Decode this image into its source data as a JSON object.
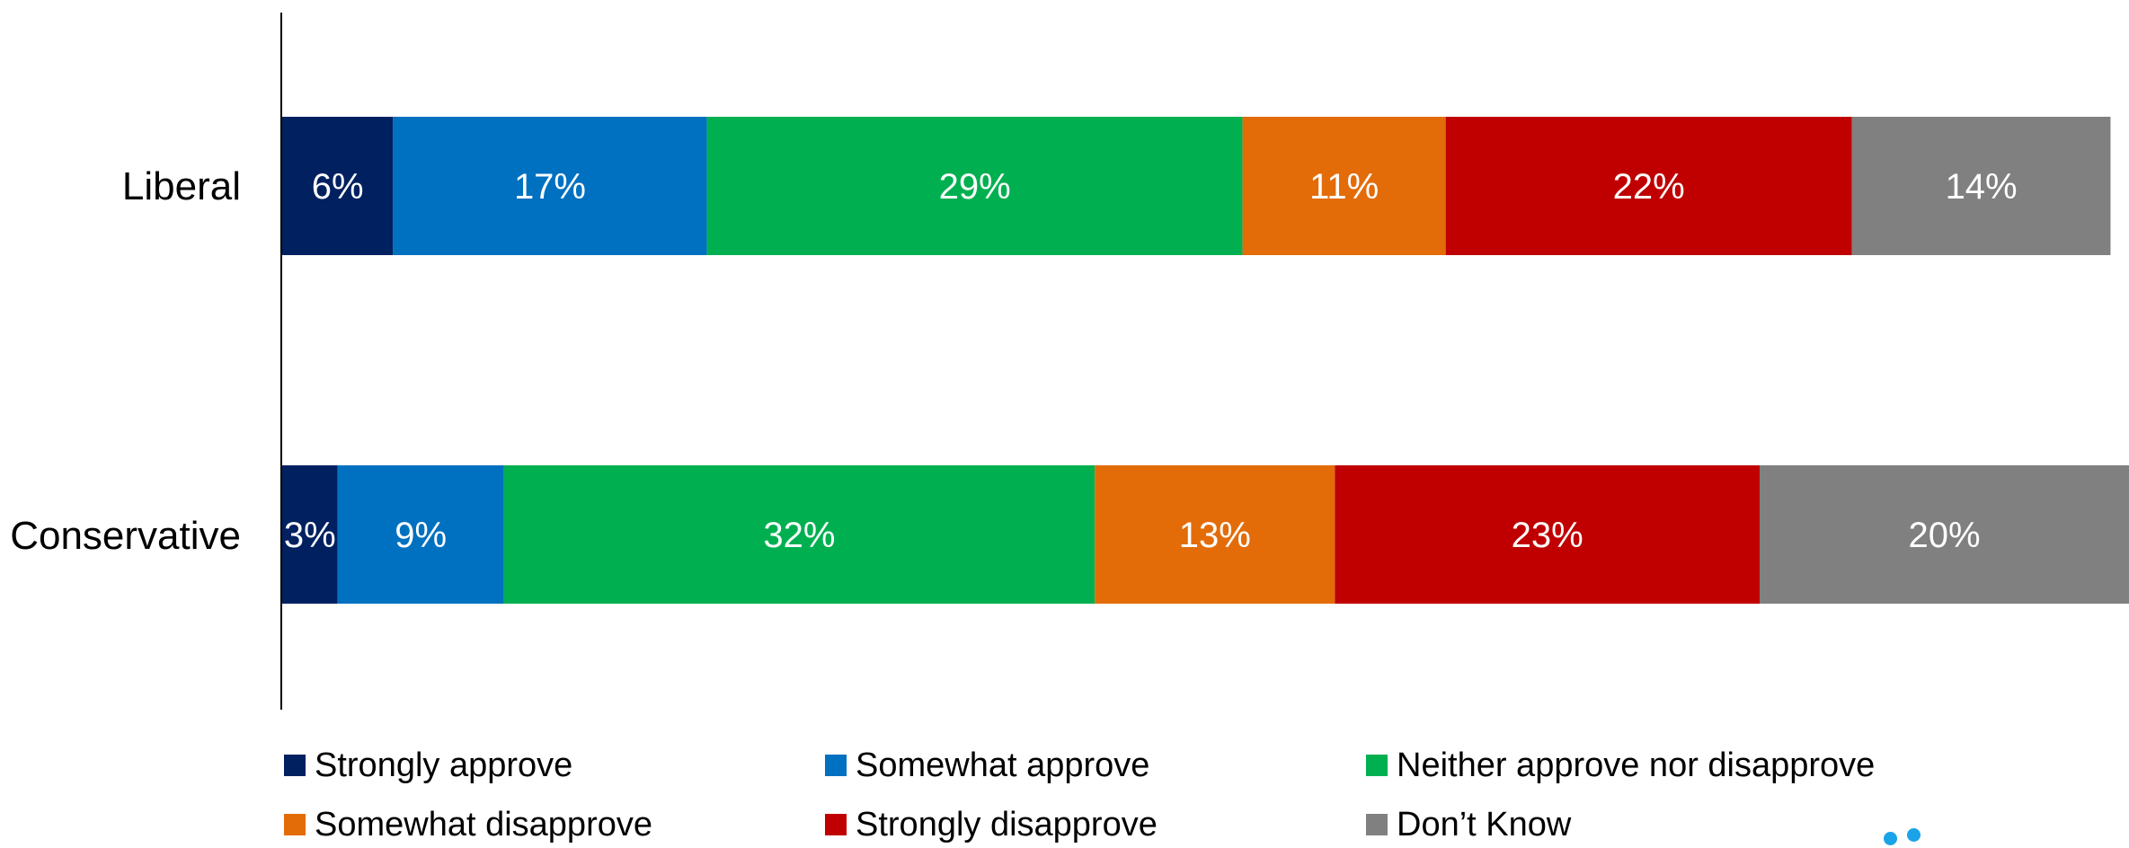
{
  "chart_data": {
    "type": "bar",
    "orientation": "horizontal",
    "stacked": true,
    "title": "",
    "xlabel": "",
    "ylabel": "",
    "xlim": [
      0,
      100
    ],
    "categories": [
      "Liberal",
      "Conservative"
    ],
    "series": [
      {
        "name": "Strongly approve",
        "color": "#002060",
        "values": [
          6,
          3
        ],
        "labels": [
          "6%",
          "3%"
        ]
      },
      {
        "name": "Somewhat approve",
        "color": "#0070c0",
        "values": [
          17,
          9
        ],
        "labels": [
          "17%",
          "9%"
        ]
      },
      {
        "name": "Neither approve nor disapprove",
        "color": "#00b050",
        "values": [
          29,
          32
        ],
        "labels": [
          "29%",
          "32%"
        ]
      },
      {
        "name": "Somewhat disapprove",
        "color": "#e36c09",
        "values": [
          11,
          13
        ],
        "labels": [
          "11%",
          "13%"
        ]
      },
      {
        "name": "Strongly disapprove",
        "color": "#c00000",
        "values": [
          22,
          23
        ],
        "labels": [
          "22%",
          "23%"
        ]
      },
      {
        "name": "Don’t Know",
        "color": "#808080",
        "values": [
          14,
          20
        ],
        "labels": [
          "14%",
          "20%"
        ]
      }
    ],
    "grid": false,
    "legend_position": "bottom"
  },
  "decoration": {
    "dots_color": "#1aa3e8"
  }
}
